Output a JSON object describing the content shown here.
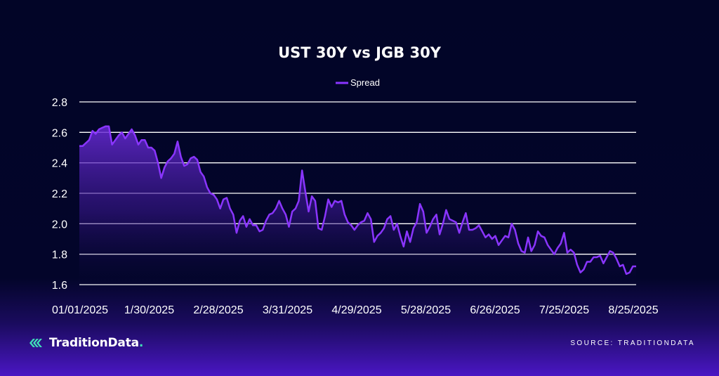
{
  "brand": {
    "name": "TraditionData",
    "dot": "."
  },
  "source": "SOURCE: TRADITIONDATA",
  "colors": {
    "line": "#8a35ff",
    "grid": "#ffffff",
    "background": "#020527",
    "brand_accent": "#3fe0b8"
  },
  "chart_data": {
    "type": "area",
    "title": "UST 30Y vs JGB 30Y",
    "xlabel": "",
    "ylabel": "",
    "ylim": [
      1.6,
      2.8
    ],
    "yticks": [
      "1.6",
      "1.8",
      "2.0",
      "2.2",
      "2.4",
      "2.6",
      "2.8"
    ],
    "xticks": [
      "01/01/2025",
      "1/30/2025",
      "2/28/2025",
      "3/31/2025",
      "4/29/2025",
      "5/28/2025",
      "6/26/2025",
      "7/25/2025",
      "8/25/2025"
    ],
    "x_start": "01/01/2025",
    "x_end": "9/2/2025",
    "grid": true,
    "legend_position": "top-center",
    "series": [
      {
        "name": "Spread",
        "values": [
          2.51,
          2.51,
          2.53,
          2.55,
          2.61,
          2.59,
          2.62,
          2.63,
          2.64,
          2.64,
          2.52,
          2.55,
          2.58,
          2.6,
          2.56,
          2.59,
          2.62,
          2.58,
          2.52,
          2.55,
          2.55,
          2.5,
          2.5,
          2.48,
          2.4,
          2.3,
          2.37,
          2.41,
          2.43,
          2.46,
          2.54,
          2.44,
          2.38,
          2.39,
          2.43,
          2.44,
          2.42,
          2.34,
          2.31,
          2.24,
          2.2,
          2.19,
          2.16,
          2.1,
          2.16,
          2.17,
          2.1,
          2.06,
          1.94,
          2.02,
          2.05,
          1.98,
          2.03,
          1.99,
          1.99,
          1.95,
          1.96,
          2.02,
          2.06,
          2.07,
          2.1,
          2.15,
          2.1,
          2.06,
          1.98,
          2.08,
          2.1,
          2.15,
          2.35,
          2.21,
          2.08,
          2.18,
          2.15,
          1.97,
          1.96,
          2.05,
          2.16,
          2.11,
          2.15,
          2.14,
          2.15,
          2.06,
          2.01,
          1.99,
          1.96,
          1.99,
          2.01,
          2.02,
          2.07,
          2.03,
          1.88,
          1.92,
          1.94,
          1.97,
          2.03,
          2.05,
          1.96,
          2.0,
          1.92,
          1.85,
          1.95,
          1.88,
          1.97,
          2.01,
          2.13,
          2.08,
          1.94,
          1.98,
          2.03,
          2.06,
          1.93,
          2.0,
          2.09,
          2.03,
          2.02,
          2.01,
          1.94,
          2.01,
          2.07,
          1.96,
          1.96,
          1.97,
          1.99,
          1.95,
          1.91,
          1.93,
          1.9,
          1.92,
          1.86,
          1.89,
          1.92,
          1.91,
          2.0,
          1.96,
          1.87,
          1.82,
          1.81,
          1.91,
          1.82,
          1.86,
          1.95,
          1.92,
          1.91,
          1.86,
          1.83,
          1.8,
          1.84,
          1.87,
          1.94,
          1.81,
          1.83,
          1.81,
          1.73,
          1.68,
          1.7,
          1.75,
          1.75,
          1.78,
          1.78,
          1.79,
          1.74,
          1.78,
          1.82,
          1.81,
          1.77,
          1.72,
          1.73,
          1.67,
          1.68,
          1.72,
          1.72
        ]
      }
    ]
  }
}
